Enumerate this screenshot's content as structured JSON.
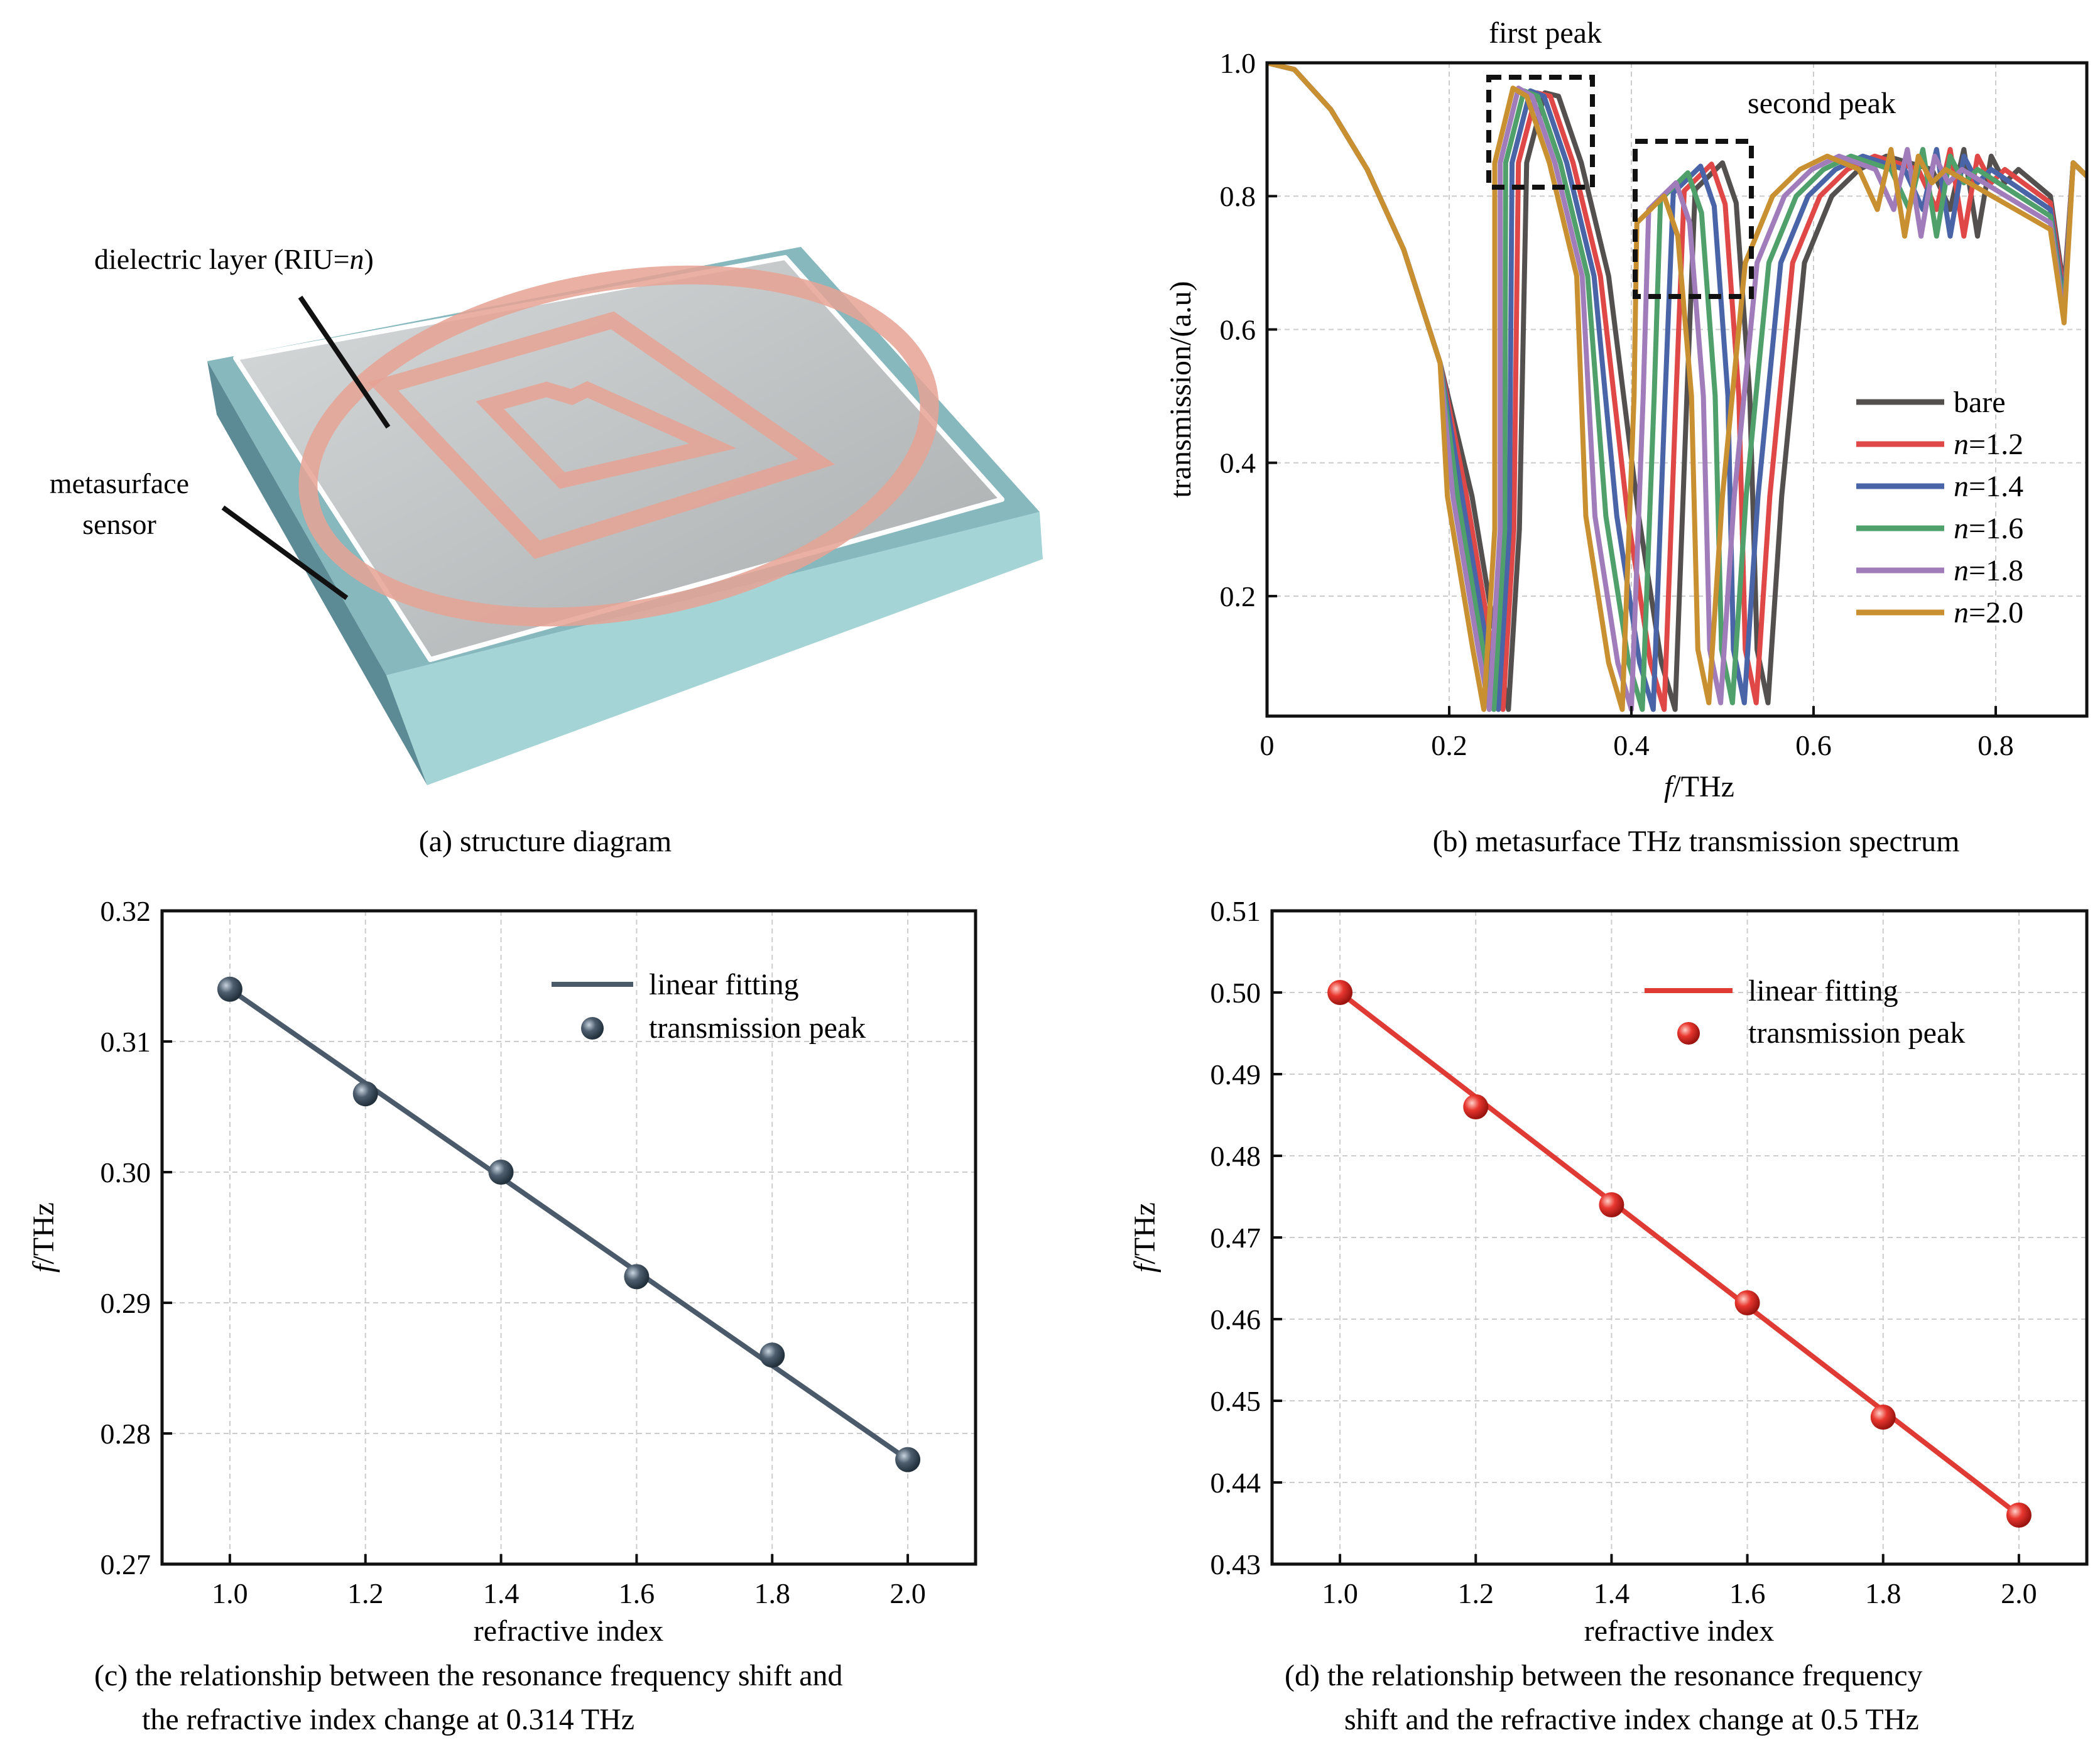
{
  "colors": {
    "bare": "#555050",
    "n12": "#e04848",
    "n14": "#4a64a8",
    "n16": "#4fa06a",
    "n18": "#a07cba",
    "n20": "#c89030",
    "fit_c": "#4a5a6a",
    "fit_d": "#e03a34",
    "slab_top": "#b9bcbd",
    "slab_side": "#7ab0b5",
    "ring": "#e8a898"
  },
  "panel_a": {
    "caption": "(a) structure diagram",
    "label_dielectric_prefix": "dielectric layer (RIU=",
    "label_dielectric_var": "n",
    "label_dielectric_suffix": ")",
    "label_meta_line1": "metasurface",
    "label_meta_line2": "sensor"
  },
  "annotations": {
    "first_peak": "first peak",
    "second_peak": "second peak"
  },
  "chart_data": [
    {
      "id": "b",
      "type": "line",
      "caption": "(b) metasurface THz transmission spectrum",
      "xlabel_var": "f",
      "xlabel_unit": "/THz",
      "ylabel": "transmission/(a.u)",
      "xlim": [
        0,
        0.9
      ],
      "ylim": [
        0.02,
        1.0
      ],
      "xticks": [
        "0",
        "0.2",
        "0.4",
        "0.6",
        "0.8"
      ],
      "yticks": [
        "0.2",
        "0.4",
        "0.6",
        "0.8",
        "1.0"
      ],
      "grid": true,
      "legend_position": "right",
      "series": [
        {
          "name": "bare",
          "var": "",
          "color_key": "bare",
          "dip1": 0.265,
          "peak1": [
            0.305,
            0.955
          ],
          "dip2": 0.448,
          "peak2": [
            0.5,
            0.85
          ],
          "dip3": 0.55,
          "dip4": 0.79
        },
        {
          "name": "=1.2",
          "var": "n",
          "color_key": "n12",
          "dip1": 0.259,
          "peak1": [
            0.296,
            0.955
          ],
          "dip2": 0.436,
          "peak2": [
            0.488,
            0.848
          ],
          "dip3": 0.537,
          "dip4": 0.775
        },
        {
          "name": "=1.4",
          "var": "n",
          "color_key": "n14",
          "dip1": 0.254,
          "peak1": [
            0.289,
            0.958
          ],
          "dip2": 0.424,
          "peak2": [
            0.476,
            0.845
          ],
          "dip3": 0.524,
          "dip4": 0.76
        },
        {
          "name": "=1.6",
          "var": "n",
          "color_key": "n16",
          "dip1": 0.249,
          "peak1": [
            0.282,
            0.958
          ],
          "dip2": 0.412,
          "peak2": [
            0.462,
            0.835
          ],
          "dip3": 0.511,
          "dip4": 0.745
        },
        {
          "name": "=1.8",
          "var": "n",
          "color_key": "n18",
          "dip1": 0.244,
          "peak1": [
            0.276,
            0.962
          ],
          "dip2": 0.4,
          "peak2": [
            0.449,
            0.82
          ],
          "dip3": 0.498,
          "dip4": 0.728
        },
        {
          "name": "=2.0",
          "var": "n",
          "color_key": "n20",
          "dip1": 0.238,
          "peak1": [
            0.27,
            0.962
          ],
          "dip2": 0.39,
          "peak2": [
            0.436,
            0.8
          ],
          "dip3": 0.485,
          "dip4": 0.71
        }
      ]
    },
    {
      "id": "c",
      "type": "scatter",
      "caption_line1": "(c) the relationship between the resonance frequency shift and",
      "caption_line2": "the refractive index change at 0.314 THz",
      "xlabel": "refractive index",
      "ylabel_var": "f",
      "ylabel_unit": "/THz",
      "xlim": [
        0.9,
        2.1
      ],
      "ylim": [
        0.27,
        0.32
      ],
      "xticks": [
        "1.0",
        "1.2",
        "1.4",
        "1.6",
        "1.8",
        "2.0"
      ],
      "yticks": [
        "0.27",
        "0.28",
        "0.29",
        "0.30",
        "0.31",
        "0.32"
      ],
      "grid": true,
      "legend_position": "top-right",
      "legend_line": "linear fitting",
      "legend_point": "transmission peak",
      "x": [
        1.0,
        1.2,
        1.4,
        1.6,
        1.8,
        2.0
      ],
      "y": [
        0.314,
        0.306,
        0.3,
        0.292,
        0.286,
        0.278
      ],
      "fit": [
        [
          1.0,
          0.314
        ],
        [
          2.0,
          0.278
        ]
      ],
      "color_key": "fit_c"
    },
    {
      "id": "d",
      "type": "scatter",
      "caption_line1": "(d) the relationship between the resonance frequency",
      "caption_line2": "shift and the refractive index change at 0.5 THz",
      "xlabel": "refractive index",
      "ylabel_var": "f",
      "ylabel_unit": "/THz",
      "xlim": [
        0.9,
        2.1
      ],
      "ylim": [
        0.43,
        0.51
      ],
      "xticks": [
        "1.0",
        "1.2",
        "1.4",
        "1.6",
        "1.8",
        "2.0"
      ],
      "yticks": [
        "0.43",
        "0.44",
        "0.45",
        "0.46",
        "0.47",
        "0.48",
        "0.49",
        "0.50",
        "0.51"
      ],
      "grid": true,
      "legend_position": "top-right",
      "legend_line": "linear fitting",
      "legend_point": "transmission peak",
      "x": [
        1.0,
        1.2,
        1.4,
        1.6,
        1.8,
        2.0
      ],
      "y": [
        0.5,
        0.486,
        0.474,
        0.462,
        0.448,
        0.436
      ],
      "fit": [
        [
          1.0,
          0.5
        ],
        [
          2.0,
          0.436
        ]
      ],
      "color_key": "fit_d"
    }
  ]
}
